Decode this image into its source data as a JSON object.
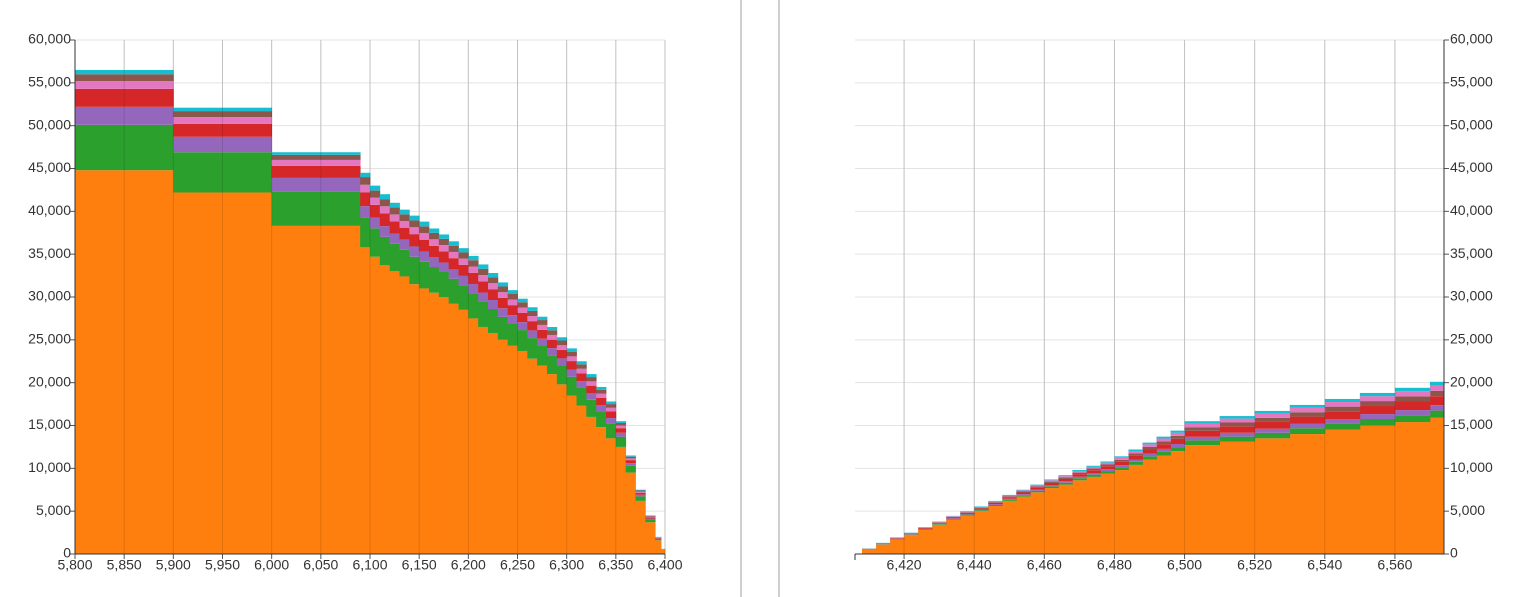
{
  "chart_data": [
    {
      "type": "step-area",
      "stacked": true,
      "grid": true,
      "y_axis_side": "left",
      "x": [
        5800,
        5900,
        6000,
        6090,
        6100,
        6110,
        6120,
        6130,
        6140,
        6150,
        6160,
        6170,
        6180,
        6190,
        6200,
        6210,
        6220,
        6230,
        6240,
        6250,
        6260,
        6270,
        6280,
        6290,
        6300,
        6310,
        6320,
        6330,
        6340,
        6350,
        6360,
        6370,
        6380,
        6390,
        6396
      ],
      "xlim": [
        5800,
        6400
      ],
      "xticks": [
        {
          "value": 5800,
          "label": "5,800"
        },
        {
          "value": 5850,
          "label": "5,850"
        },
        {
          "value": 5900,
          "label": "5,900"
        },
        {
          "value": 5950,
          "label": "5,950"
        },
        {
          "value": 6000,
          "label": "6,000"
        },
        {
          "value": 6050,
          "label": "6,050"
        },
        {
          "value": 6100,
          "label": "6,100"
        },
        {
          "value": 6150,
          "label": "6,150"
        },
        {
          "value": 6200,
          "label": "6,200"
        },
        {
          "value": 6250,
          "label": "6,250"
        },
        {
          "value": 6300,
          "label": "6,300"
        },
        {
          "value": 6350,
          "label": "6,350"
        },
        {
          "value": 6400,
          "label": "6,400"
        }
      ],
      "ylim": [
        0,
        60000
      ],
      "yticks": [
        0,
        {
          "value": 5000,
          "label": "5,000"
        },
        {
          "value": 10000,
          "label": "10,000"
        },
        {
          "value": 15000,
          "label": "15,000"
        },
        {
          "value": 20000,
          "label": "20,000"
        },
        {
          "value": 25000,
          "label": "25,000"
        },
        {
          "value": 30000,
          "label": "30,000"
        },
        {
          "value": 35000,
          "label": "35,000"
        },
        {
          "value": 40000,
          "label": "40,000"
        },
        {
          "value": 45000,
          "label": "45,000"
        },
        {
          "value": 50000,
          "label": "50,000"
        },
        {
          "value": 55000,
          "label": "55,000"
        },
        {
          "value": 60000,
          "label": "60,000"
        }
      ],
      "series": [
        {
          "color": "#ff7f0e",
          "values": [
            44800,
            42200,
            38300,
            35800,
            34700,
            33700,
            33000,
            32400,
            31500,
            31000,
            30500,
            30000,
            29200,
            28500,
            27500,
            26500,
            25800,
            25000,
            24300,
            23700,
            22800,
            22000,
            21000,
            19800,
            18500,
            17300,
            16000,
            14800,
            13500,
            12500,
            9500,
            6200,
            3700,
            1600,
            500
          ]
        },
        {
          "color": "#2ca02c",
          "values": [
            5300,
            4700,
            4000,
            3500,
            3320,
            3320,
            3200,
            3120,
            3200,
            3120,
            3000,
            2920,
            2920,
            2880,
            2920,
            2920,
            2800,
            2680,
            2600,
            2440,
            2400,
            2280,
            2200,
            2200,
            2200,
            2080,
            2000,
            1880,
            1720,
            1200,
            800,
            520,
            320,
            160,
            40
          ]
        },
        {
          "color": "#9467bd",
          "values": [
            2100,
            1800,
            1600,
            1300,
            1250,
            1250,
            1200,
            1170,
            1200,
            1170,
            1130,
            1100,
            1100,
            1080,
            1100,
            1100,
            1050,
            1000,
            980,
            920,
            900,
            860,
            830,
            830,
            830,
            780,
            750,
            710,
            650,
            450,
            300,
            200,
            120,
            60,
            20
          ]
        },
        {
          "color": "#d62728",
          "values": [
            2100,
            1500,
            1400,
            1600,
            1490,
            1490,
            1440,
            1400,
            1440,
            1400,
            1350,
            1310,
            1310,
            1300,
            1310,
            1310,
            1260,
            1210,
            1170,
            1100,
            1080,
            1030,
            990,
            990,
            990,
            940,
            900,
            850,
            770,
            540,
            360,
            230,
            140,
            70,
            10
          ]
        },
        {
          "color": "#e377c2",
          "values": [
            900,
            800,
            700,
            900,
            830,
            830,
            800,
            780,
            800,
            780,
            750,
            730,
            730,
            720,
            730,
            730,
            700,
            670,
            650,
            610,
            600,
            570,
            550,
            550,
            550,
            520,
            500,
            470,
            430,
            300,
            200,
            130,
            80,
            40,
            10
          ]
        },
        {
          "color": "#8c564b",
          "values": [
            800,
            700,
            600,
            900,
            830,
            830,
            800,
            780,
            800,
            780,
            750,
            730,
            730,
            720,
            730,
            730,
            700,
            670,
            650,
            610,
            600,
            570,
            550,
            550,
            550,
            520,
            500,
            470,
            430,
            300,
            200,
            130,
            80,
            40,
            10
          ]
        },
        {
          "color": "#17becf",
          "values": [
            500,
            400,
            300,
            500,
            580,
            580,
            560,
            550,
            560,
            550,
            520,
            510,
            510,
            500,
            510,
            510,
            490,
            470,
            450,
            420,
            420,
            390,
            380,
            380,
            380,
            360,
            350,
            320,
            300,
            210,
            140,
            90,
            60,
            30,
            10
          ]
        }
      ]
    },
    {
      "type": "step-area",
      "stacked": true,
      "grid": true,
      "y_axis_side": "right",
      "x": [
        6408,
        6412,
        6416,
        6420,
        6424,
        6428,
        6432,
        6436,
        6440,
        6444,
        6448,
        6452,
        6456,
        6460,
        6464,
        6468,
        6472,
        6476,
        6480,
        6484,
        6488,
        6492,
        6496,
        6500,
        6510,
        6520,
        6530,
        6540,
        6550,
        6560,
        6570
      ],
      "xlim": [
        6406,
        6574
      ],
      "xticks": [
        {
          "value": 6420,
          "label": "6,420"
        },
        {
          "value": 6440,
          "label": "6,440"
        },
        {
          "value": 6460,
          "label": "6,460"
        },
        {
          "value": 6480,
          "label": "6,480"
        },
        {
          "value": 6500,
          "label": "6,500"
        },
        {
          "value": 6520,
          "label": "6,520"
        },
        {
          "value": 6540,
          "label": "6,540"
        },
        {
          "value": 6560,
          "label": "6,560"
        }
      ],
      "ylim": [
        0,
        60000
      ],
      "yticks": [
        0,
        {
          "value": 5000,
          "label": "5,000"
        },
        {
          "value": 10000,
          "label": "10,000"
        },
        {
          "value": 15000,
          "label": "15,000"
        },
        {
          "value": 20000,
          "label": "20,000"
        },
        {
          "value": 25000,
          "label": "25,000"
        },
        {
          "value": 30000,
          "label": "30,000"
        },
        {
          "value": 35000,
          "label": "35,000"
        },
        {
          "value": 40000,
          "label": "40,000"
        },
        {
          "value": 45000,
          "label": "45,000"
        },
        {
          "value": 50000,
          "label": "50,000"
        },
        {
          "value": 55000,
          "label": "55,000"
        },
        {
          "value": 60000,
          "label": "60,000"
        }
      ],
      "series": [
        {
          "color": "#ff7f0e",
          "values": [
            500,
            1100,
            1700,
            2200,
            2800,
            3400,
            4000,
            4500,
            5000,
            5600,
            6200,
            6700,
            7200,
            7700,
            8100,
            8600,
            9000,
            9400,
            9800,
            10400,
            11000,
            11500,
            12000,
            12700,
            13100,
            13500,
            14000,
            14500,
            15000,
            15400,
            15900
          ]
        },
        {
          "color": "#2ca02c",
          "values": [
            30,
            40,
            50,
            60,
            70,
            80,
            90,
            100,
            110,
            120,
            140,
            160,
            180,
            200,
            220,
            240,
            260,
            280,
            320,
            360,
            400,
            440,
            480,
            560,
            600,
            640,
            680,
            720,
            760,
            800,
            840
          ]
        },
        {
          "color": "#9467bd",
          "values": [
            20,
            30,
            40,
            45,
            50,
            60,
            70,
            75,
            80,
            90,
            105,
            120,
            135,
            150,
            165,
            180,
            195,
            210,
            240,
            270,
            300,
            330,
            360,
            420,
            450,
            480,
            510,
            540,
            570,
            600,
            630
          ]
        },
        {
          "color": "#d62728",
          "values": [
            40,
            50,
            60,
            75,
            90,
            100,
            110,
            125,
            140,
            150,
            175,
            200,
            225,
            250,
            275,
            300,
            325,
            350,
            400,
            450,
            500,
            550,
            600,
            700,
            750,
            800,
            850,
            900,
            950,
            1000,
            1050
          ]
        },
        {
          "color": "#8c564b",
          "values": [
            20,
            30,
            40,
            45,
            55,
            60,
            70,
            75,
            80,
            90,
            105,
            120,
            135,
            150,
            165,
            180,
            195,
            210,
            240,
            270,
            300,
            330,
            360,
            420,
            450,
            480,
            510,
            540,
            570,
            600,
            630
          ]
        },
        {
          "color": "#e377c2",
          "values": [
            20,
            30,
            40,
            45,
            55,
            60,
            70,
            75,
            80,
            90,
            105,
            120,
            135,
            150,
            165,
            180,
            195,
            210,
            240,
            270,
            300,
            330,
            360,
            420,
            450,
            480,
            510,
            540,
            570,
            600,
            630
          ]
        },
        {
          "color": "#17becf",
          "values": [
            20,
            20,
            20,
            30,
            30,
            40,
            40,
            50,
            60,
            60,
            70,
            80,
            90,
            100,
            110,
            120,
            130,
            140,
            160,
            180,
            200,
            220,
            240,
            280,
            300,
            320,
            340,
            360,
            380,
            400,
            420
          ]
        }
      ]
    }
  ]
}
